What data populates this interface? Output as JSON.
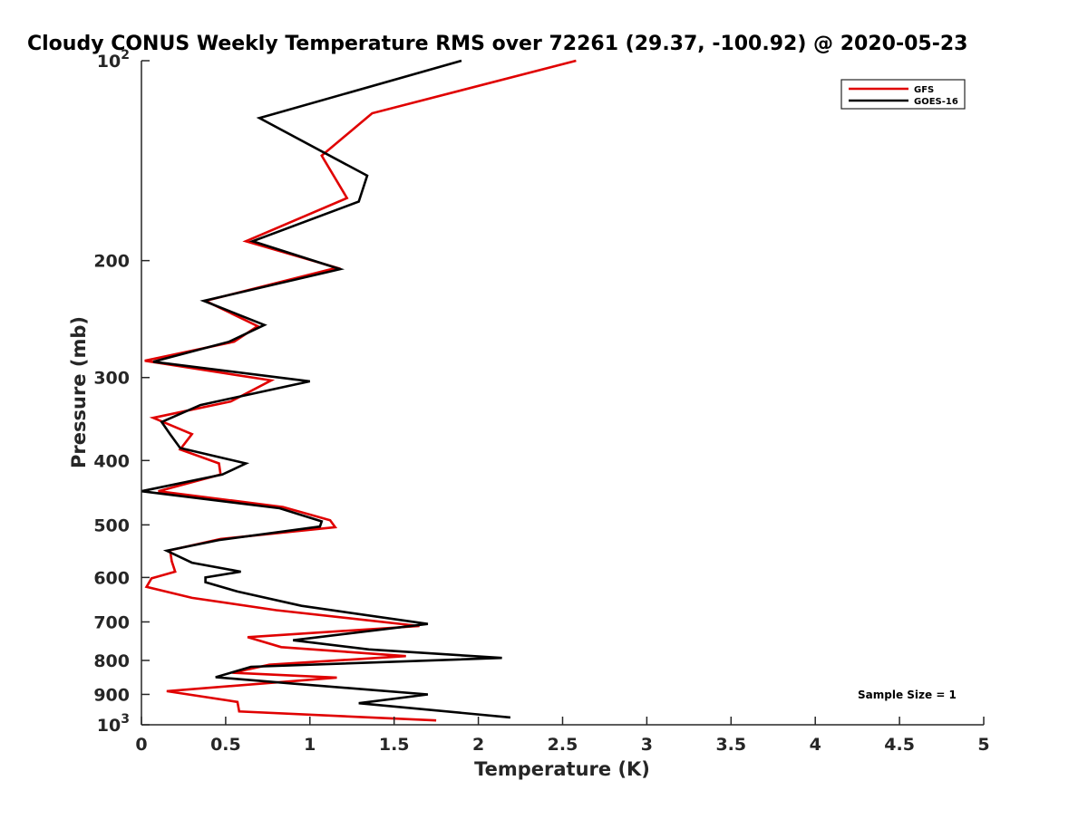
{
  "chart_data": {
    "type": "line",
    "title": "Cloudy CONUS Weekly Temperature RMS over 72261 (29.37, -100.92) @ 2020-05-23",
    "xlabel": "Temperature (K)",
    "ylabel": "Pressure (mb)",
    "xlim": [
      0,
      5
    ],
    "ylim": [
      100,
      1000
    ],
    "y_scale": "log",
    "y_reversed": true,
    "x_ticks": [
      "0",
      "0.5",
      "1",
      "1.5",
      "2",
      "2.5",
      "3",
      "3.5",
      "4",
      "4.5",
      "5"
    ],
    "y_ticks": [
      {
        "value": 100,
        "base": "10",
        "exp": "2"
      },
      {
        "value": 200,
        "label": "200"
      },
      {
        "value": 300,
        "label": "300"
      },
      {
        "value": 400,
        "label": "400"
      },
      {
        "value": 500,
        "label": "500"
      },
      {
        "value": 600,
        "label": "600"
      },
      {
        "value": 700,
        "label": "700"
      },
      {
        "value": 800,
        "label": "800"
      },
      {
        "value": 900,
        "label": "900"
      },
      {
        "value": 1000,
        "base": "10",
        "exp": "3"
      }
    ],
    "legend_position": "top-right",
    "grid": false,
    "annotation": "Sample Size = 1",
    "series": [
      {
        "name": "GFS",
        "color": "#e00000",
        "points": [
          [
            2.58,
            100
          ],
          [
            1.37,
            120
          ],
          [
            1.07,
            139
          ],
          [
            1.22,
            161
          ],
          [
            0.62,
            187
          ],
          [
            1.16,
            205
          ],
          [
            0.38,
            230
          ],
          [
            0.69,
            251
          ],
          [
            0.55,
            265
          ],
          [
            0.02,
            283
          ],
          [
            0.77,
            303
          ],
          [
            0.53,
            326
          ],
          [
            0.07,
            345
          ],
          [
            0.3,
            365
          ],
          [
            0.23,
            385
          ],
          [
            0.46,
            404
          ],
          [
            0.47,
            420
          ],
          [
            0.1,
            445
          ],
          [
            0.84,
            470
          ],
          [
            1.12,
            492
          ],
          [
            1.15,
            504
          ],
          [
            0.47,
            525
          ],
          [
            0.17,
            546
          ],
          [
            0.18,
            567
          ],
          [
            0.2,
            588
          ],
          [
            0.06,
            602
          ],
          [
            0.03,
            620
          ],
          [
            0.3,
            644
          ],
          [
            0.8,
            672
          ],
          [
            1.65,
            710
          ],
          [
            0.63,
            738
          ],
          [
            0.83,
            764
          ],
          [
            1.57,
            788
          ],
          [
            0.76,
            812
          ],
          [
            0.54,
            835
          ],
          [
            1.16,
            849
          ],
          [
            0.15,
            890
          ],
          [
            0.57,
            924
          ],
          [
            0.58,
            955
          ],
          [
            1.75,
            985
          ]
        ]
      },
      {
        "name": "GOES-16",
        "color": "#000000",
        "points": [
          [
            1.9,
            100
          ],
          [
            0.7,
            122
          ],
          [
            1.34,
            149
          ],
          [
            1.29,
            163
          ],
          [
            0.66,
            187
          ],
          [
            1.18,
            206
          ],
          [
            0.37,
            230
          ],
          [
            0.73,
            250
          ],
          [
            0.52,
            265
          ],
          [
            0.07,
            284
          ],
          [
            1.0,
            304
          ],
          [
            0.35,
            330
          ],
          [
            0.12,
            350
          ],
          [
            0.17,
            365
          ],
          [
            0.23,
            383
          ],
          [
            0.62,
            404
          ],
          [
            0.48,
            420
          ],
          [
            0.0,
            445
          ],
          [
            0.82,
            472
          ],
          [
            1.07,
            494
          ],
          [
            1.06,
            503
          ],
          [
            0.46,
            527
          ],
          [
            0.15,
            547
          ],
          [
            0.3,
            570
          ],
          [
            0.59,
            588
          ],
          [
            0.38,
            600
          ],
          [
            0.38,
            610
          ],
          [
            0.57,
            630
          ],
          [
            0.95,
            662
          ],
          [
            1.7,
            705
          ],
          [
            0.9,
            746
          ],
          [
            1.35,
            770
          ],
          [
            2.14,
            793
          ],
          [
            0.65,
            818
          ],
          [
            0.44,
            848
          ],
          [
            0.9,
            867
          ],
          [
            1.7,
            900
          ],
          [
            1.29,
            928
          ],
          [
            2.19,
            975
          ]
        ]
      }
    ]
  }
}
